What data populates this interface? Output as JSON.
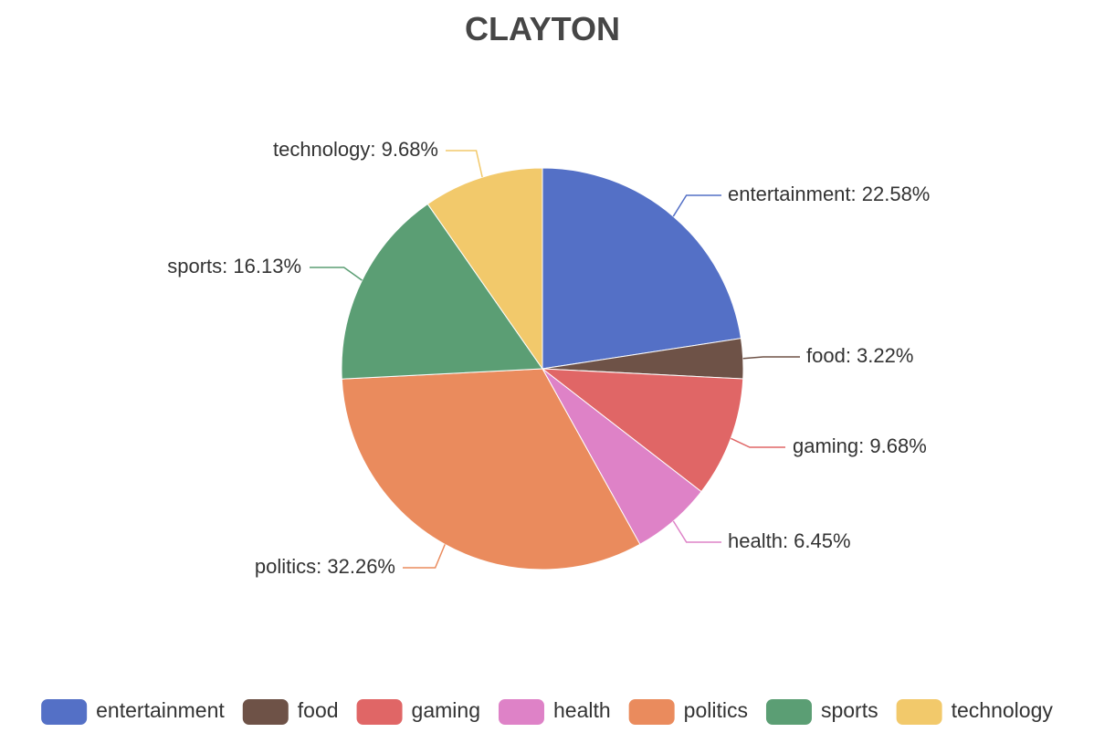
{
  "chart_data": {
    "type": "pie",
    "title": "CLAYTON",
    "categories": [
      "entertainment",
      "food",
      "gaming",
      "health",
      "politics",
      "sports",
      "technology"
    ],
    "values": [
      22.58,
      3.22,
      9.68,
      6.45,
      32.26,
      16.13,
      9.68
    ],
    "labels": [
      "entertainment: 22.58%",
      "food: 3.22%",
      "gaming: 9.68%",
      "health: 6.45%",
      "politics: 32.26%",
      "sports: 16.13%",
      "technology: 9.68%"
    ],
    "colors": [
      "#5470c6",
      "#6e5247",
      "#e06666",
      "#de82c7",
      "#ea8b5d",
      "#5b9e74",
      "#f2c96b"
    ],
    "legend_position": "bottom",
    "start_angle": "12 o'clock, clockwise"
  }
}
